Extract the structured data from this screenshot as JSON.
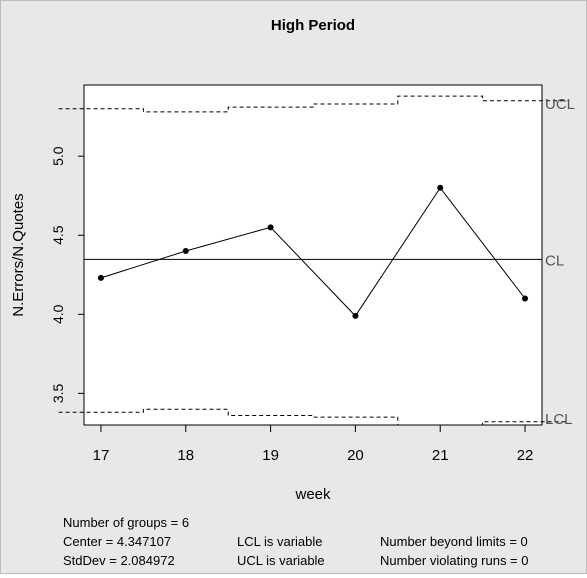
{
  "chart_data": {
    "type": "line",
    "title": "High Period",
    "xlabel": "week",
    "ylabel": "N.Errors/N.Quotes",
    "categories": [
      "17",
      "18",
      "19",
      "20",
      "21",
      "22"
    ],
    "series": [
      {
        "values": [
          4.23,
          4.4,
          4.55,
          3.99,
          4.8,
          4.1
        ]
      }
    ],
    "center_line": {
      "label": "CL",
      "value": 4.347107
    },
    "ucl": {
      "label": "UCL",
      "values": [
        5.3,
        5.28,
        5.31,
        5.33,
        5.38,
        5.35
      ]
    },
    "lcl": {
      "label": "LCL",
      "values": [
        3.38,
        3.4,
        3.36,
        3.35,
        3.3,
        3.32
      ]
    },
    "xlim": [
      16.8,
      22.2
    ],
    "ylim": [
      3.3,
      5.45
    ],
    "y_ticks": [
      3.5,
      4.0,
      4.5,
      5.0
    ],
    "y_tick_labels": [
      "3.5",
      "4.0",
      "4.5",
      "5.0"
    ],
    "grid": false,
    "legend": "none"
  },
  "stats": {
    "groups": "Number of groups = 6",
    "center": "Center = 4.347107",
    "stddev": "StdDev = 2.084972",
    "lcl_note": "LCL is variable",
    "ucl_note": "UCL is variable",
    "beyond": "Number beyond limits = 0",
    "violating": "Number violating runs = 0"
  }
}
